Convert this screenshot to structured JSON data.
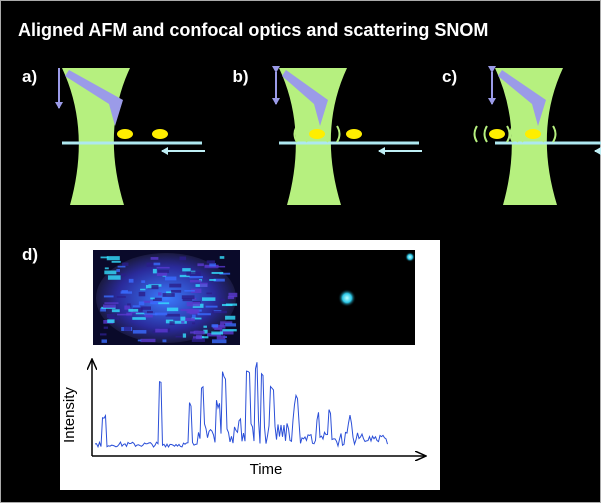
{
  "title": "Aligned AFM and confocal optics and scattering SNOM",
  "panels": [
    {
      "label": "a)"
    },
    {
      "label": "b)"
    },
    {
      "label": "c)"
    },
    {
      "label": "d)"
    }
  ],
  "plot": {
    "y_label": "Intensity",
    "x_label": "Time"
  }
}
